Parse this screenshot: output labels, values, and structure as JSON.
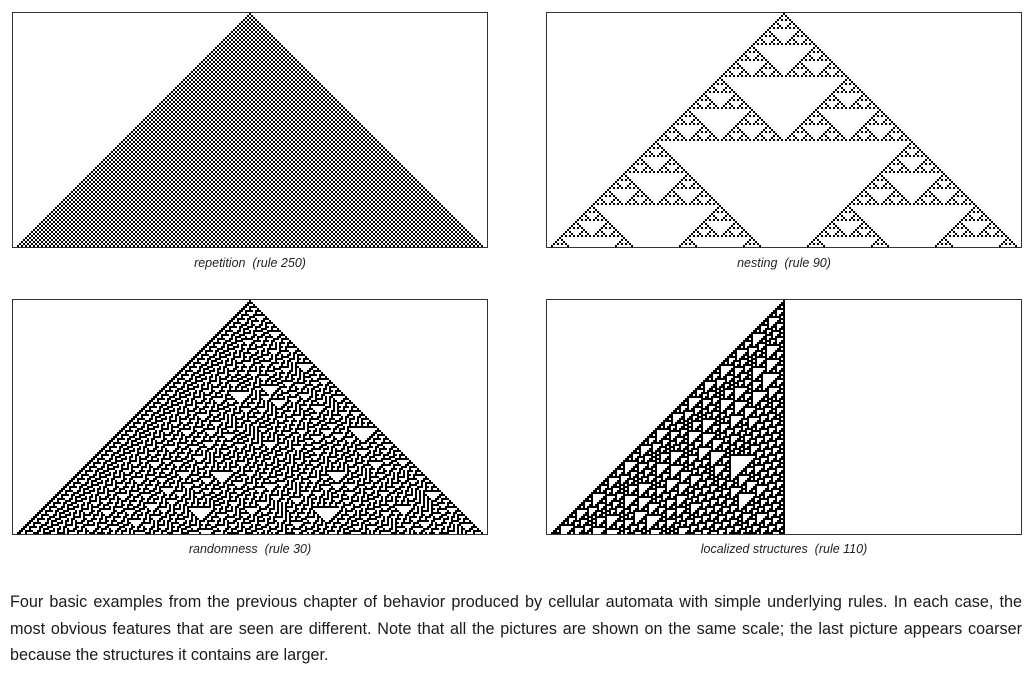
{
  "figures": [
    {
      "caption": "repetition  (rule 250)",
      "rule": 250,
      "init": "single",
      "start_offset": 0
    },
    {
      "caption": "nesting  (rule 90)",
      "rule": 90,
      "init": "single",
      "start_offset": 0
    },
    {
      "caption": "randomness  (rule 30)",
      "rule": 30,
      "init": "single",
      "start_offset": 0
    },
    {
      "caption": "localized structures  (rule 110)",
      "rule": 110,
      "init": "single",
      "start_offset": 0
    }
  ],
  "description": "Four basic examples from the previous chapter of behavior produced by cellular automata with simple underlying rules. In each case, the most obvious features that are seen are different. Note that all the pictures are shown on the same scale; the last picture appears coarser because the structures it contains are larger.",
  "colors": {
    "cell_on": "#000000",
    "cell_off": "#ffffff",
    "frame": "#333333"
  }
}
